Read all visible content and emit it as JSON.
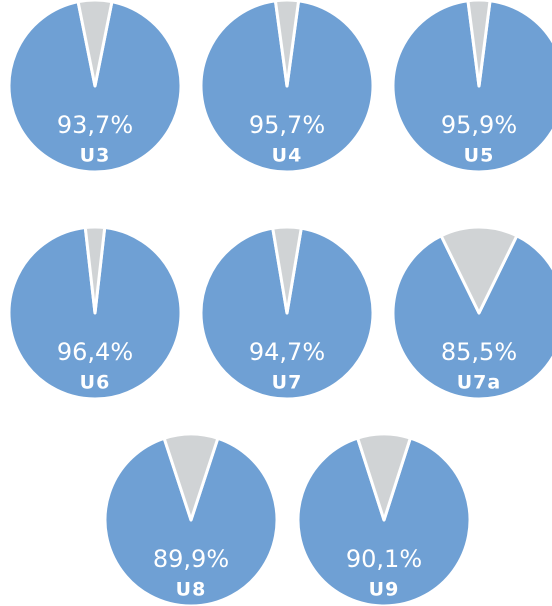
{
  "chart_data": [
    {
      "type": "pie",
      "title": "U3",
      "values": [
        93.7,
        6.3
      ],
      "value_labels": [
        "93,7%",
        null
      ],
      "colors": [
        "#6fa0d4",
        "#d0d3d5"
      ]
    },
    {
      "type": "pie",
      "title": "U4",
      "values": [
        95.7,
        4.3
      ],
      "value_labels": [
        "95,7%",
        null
      ],
      "colors": [
        "#6fa0d4",
        "#d0d3d5"
      ]
    },
    {
      "type": "pie",
      "title": "U5",
      "values": [
        95.9,
        4.1
      ],
      "value_labels": [
        "95,9%",
        null
      ],
      "colors": [
        "#6fa0d4",
        "#d0d3d5"
      ]
    },
    {
      "type": "pie",
      "title": "U6",
      "values": [
        96.4,
        3.6
      ],
      "value_labels": [
        "96,4%",
        null
      ],
      "colors": [
        "#6fa0d4",
        "#d0d3d5"
      ]
    },
    {
      "type": "pie",
      "title": "U7",
      "values": [
        94.7,
        5.3
      ],
      "value_labels": [
        "94,7%",
        null
      ],
      "colors": [
        "#6fa0d4",
        "#d0d3d5"
      ]
    },
    {
      "type": "pie",
      "title": "U7a",
      "values": [
        85.5,
        14.5
      ],
      "value_labels": [
        "85,5%",
        null
      ],
      "colors": [
        "#6fa0d4",
        "#d0d3d5"
      ]
    },
    {
      "type": "pie",
      "title": "U8",
      "values": [
        89.9,
        10.1
      ],
      "value_labels": [
        "89,9%",
        null
      ],
      "colors": [
        "#6fa0d4",
        "#d0d3d5"
      ]
    },
    {
      "type": "pie",
      "title": "U9",
      "values": [
        90.1,
        9.9
      ],
      "value_labels": [
        "90,1%",
        null
      ],
      "colors": [
        "#6fa0d4",
        "#d0d3d5"
      ]
    }
  ]
}
